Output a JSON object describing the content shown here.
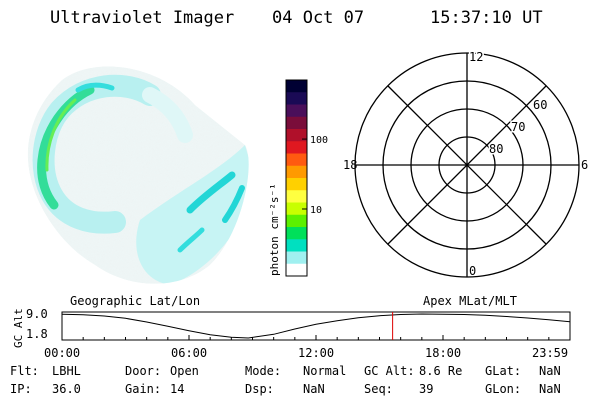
{
  "header": {
    "instrument": "Ultraviolet Imager",
    "date": "04 Oct 07",
    "time": "15:37:10 UT"
  },
  "colorbar": {
    "unit_label": "photon cm⁻²s⁻¹",
    "ticks": [
      {
        "value": 100,
        "label": "100"
      },
      {
        "value": 10,
        "label": "10"
      }
    ],
    "scale": "log",
    "colors": [
      "#000033",
      "#1a0a55",
      "#4a0f5a",
      "#7a0d3a",
      "#b0102a",
      "#e01820",
      "#ff5a10",
      "#ff9a00",
      "#ffd000",
      "#ffff40",
      "#c8ff00",
      "#5cf000",
      "#00e05a",
      "#00e0c0",
      "#a0f0f0",
      "#ffffff"
    ]
  },
  "polar_plot": {
    "mlt_labels": {
      "top": "12",
      "left": "18",
      "right": "6",
      "bottom": "0"
    },
    "lat_labels": [
      "60",
      "70",
      "80"
    ]
  },
  "timeline": {
    "left_title": "Geographic Lat/Lon",
    "right_title": "Apex MLat/MLT",
    "ylabel": "GC Alt",
    "y_ticks": [
      "9.0",
      "1.8"
    ],
    "x_ticks": [
      "00:00",
      "06:00",
      "12:00",
      "18:00",
      "23:59"
    ],
    "marker_color": "#dd0000"
  },
  "chart_data": {
    "type": "line",
    "title": "Ultraviolet Imager",
    "xlabel": "",
    "ylabel": "GC Alt",
    "x_unit": "hours UT",
    "xlim": [
      0,
      24
    ],
    "ylim": [
      1.8,
      9.0
    ],
    "x": [
      0,
      1,
      2,
      3,
      4,
      5,
      6,
      7,
      8,
      8.8,
      10,
      11,
      12,
      13,
      14,
      15,
      16,
      17,
      18,
      19,
      20,
      21,
      22,
      23,
      24
    ],
    "y": [
      8.95,
      8.8,
      8.4,
      7.7,
      6.6,
      5.3,
      4.0,
      2.8,
      2.0,
      1.8,
      2.9,
      4.5,
      5.9,
      7.0,
      7.9,
      8.5,
      8.85,
      9.0,
      8.95,
      8.85,
      8.6,
      8.25,
      7.8,
      7.25,
      6.7
    ],
    "marker_time": 15.62
  },
  "info": {
    "rows": [
      [
        {
          "label": "Flt:",
          "value": "LBHL"
        },
        {
          "label": "Door:",
          "value": "Open"
        },
        {
          "label": "Mode:",
          "value": "Normal"
        },
        {
          "label": "GC Alt:",
          "value": "8.6 Re"
        },
        {
          "label": "GLat:",
          "value": "NaN"
        }
      ],
      [
        {
          "label": "IP:",
          "value": "36.0"
        },
        {
          "label": "Gain:",
          "value": "14"
        },
        {
          "label": "Dsp:",
          "value": "NaN"
        },
        {
          "label": "Seq:",
          "value": "39"
        },
        {
          "label": "GLon:",
          "value": "NaN"
        }
      ]
    ]
  }
}
